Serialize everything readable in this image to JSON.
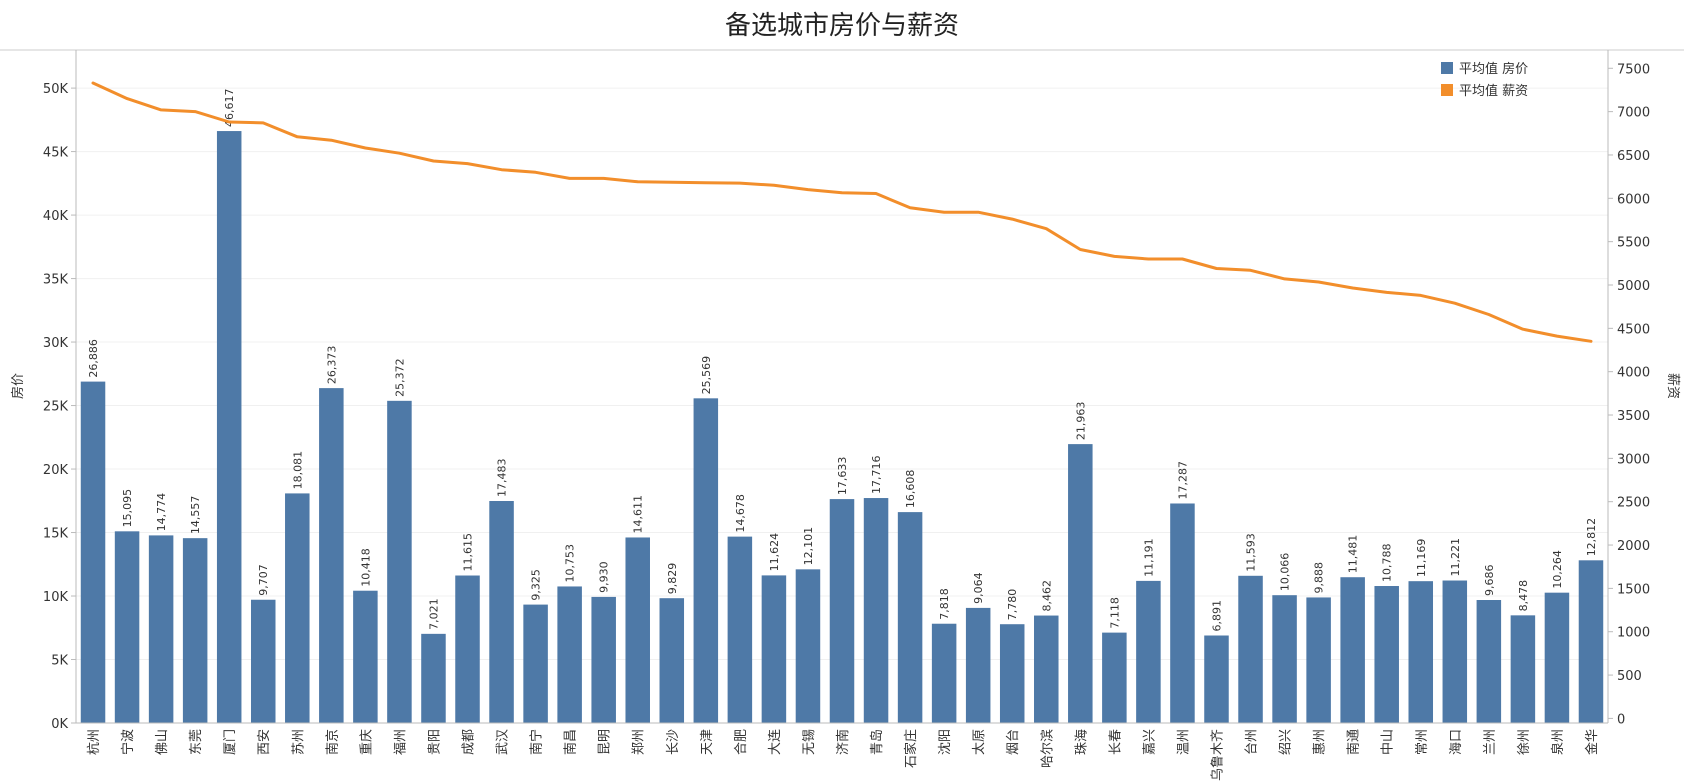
{
  "chart_data": {
    "type": "bar",
    "title": "备选城市房价与薪资",
    "xlabel": "",
    "ylabel": "房价",
    "y2label": "薪资",
    "ylim": [
      0,
      53000
    ],
    "y2lim": [
      -53,
      7711
    ],
    "yticks": [
      0,
      5000,
      10000,
      15000,
      20000,
      25000,
      30000,
      35000,
      40000,
      45000,
      50000
    ],
    "ytick_labels": [
      "0K",
      "5K",
      "10K",
      "15K",
      "20K",
      "25K",
      "30K",
      "35K",
      "40K",
      "45K",
      "50K"
    ],
    "y2ticks": [
      0,
      500,
      1000,
      1500,
      2000,
      2500,
      3000,
      3500,
      4000,
      4500,
      5000,
      5500,
      6000,
      6500,
      7000,
      7500
    ],
    "y2tick_labels": [
      "0",
      "500",
      "1000",
      "1500",
      "2000",
      "2500",
      "3000",
      "3500",
      "4000",
      "4500",
      "5000",
      "5500",
      "6000",
      "6500",
      "7000",
      "7500"
    ],
    "grid": true,
    "legend_position": "top-right",
    "categories": [
      "杭州",
      "宁波",
      "佛山",
      "东莞",
      "厦门",
      "西安",
      "苏州",
      "南京",
      "重庆",
      "福州",
      "贵阳",
      "成都",
      "武汉",
      "南宁",
      "南昌",
      "昆明",
      "郑州",
      "长沙",
      "天津",
      "合肥",
      "大连",
      "无锡",
      "济南",
      "青岛",
      "石家庄",
      "沈阳",
      "太原",
      "烟台",
      "哈尔滨",
      "珠海",
      "长春",
      "嘉兴",
      "温州",
      "乌鲁木齐",
      "台州",
      "绍兴",
      "惠州",
      "南通",
      "中山",
      "常州",
      "海口",
      "兰州",
      "徐州",
      "泉州",
      "金华"
    ],
    "series": [
      {
        "name": "平均值 房价",
        "type": "bar",
        "axis": "left",
        "color": "#4e79a7",
        "values": [
          26886,
          15095,
          14774,
          14557,
          46617,
          9707,
          18081,
          26373,
          10418,
          25372,
          7021,
          11615,
          17483,
          9325,
          10753,
          9930,
          14611,
          9829,
          25569,
          14678,
          11624,
          12101,
          17633,
          17716,
          16608,
          7818,
          9064,
          7780,
          8462,
          21963,
          7118,
          11191,
          17287,
          6891,
          11593,
          10066,
          9888,
          11481,
          10788,
          11169,
          11221,
          9686,
          8478,
          10264,
          12812
        ],
        "labels": [
          "26,886",
          "15,095",
          "14,774",
          "14,557",
          "46,617",
          "9,707",
          "18,081",
          "26,373",
          "10,418",
          "25,372",
          "7,021",
          "11,615",
          "17,483",
          "9,325",
          "10,753",
          "9,930",
          "14,611",
          "9,829",
          "25,569",
          "14,678",
          "11,624",
          "12,101",
          "17,633",
          "17,716",
          "16,608",
          "7,818",
          "9,064",
          "7,780",
          "8,462",
          "21,963",
          "7,118",
          "11,191",
          "17,287",
          "6,891",
          "11,593",
          "10,066",
          "9,888",
          "11,481",
          "10,788",
          "11,169",
          "11,221",
          "9,686",
          "8,478",
          "10,264",
          "12,812"
        ]
      },
      {
        "name": "平均值 薪资",
        "type": "line",
        "axis": "right",
        "color": "#f28e2b",
        "values": [
          7330,
          7150,
          7020,
          7000,
          6880,
          6870,
          6710,
          6670,
          6580,
          6520,
          6430,
          6400,
          6330,
          6300,
          6230,
          6230,
          6190,
          6185,
          6180,
          6175,
          6150,
          6100,
          6065,
          6055,
          5890,
          5840,
          5840,
          5760,
          5650,
          5410,
          5330,
          5300,
          5300,
          5190,
          5170,
          5070,
          5035,
          4965,
          4915,
          4880,
          4790,
          4660,
          4490,
          4410,
          4350
        ]
      }
    ]
  }
}
